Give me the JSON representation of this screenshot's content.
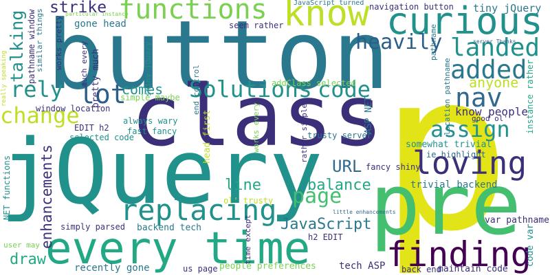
{
  "palette": {
    "dark_purple": "#440154",
    "indigo": "#3b2f7a",
    "blue": "#2c5e8a",
    "slate_blue": "#31688e",
    "teal_blue": "#2a788e",
    "teal": "#21918c",
    "sea_green": "#22a884",
    "green": "#44bf70",
    "light_green": "#7ad151",
    "yellow_green": "#bddf26",
    "yellow": "#e2e418"
  },
  "words": [
    {
      "text": "p",
      "color": "yellow"
    },
    {
      "text": "button",
      "color": "teal_blue"
    },
    {
      "text": "class",
      "color": "indigo"
    },
    {
      "text": "jQuery",
      "color": "teal"
    },
    {
      "text": "pre",
      "color": "green"
    },
    {
      "text": "every time",
      "color": "sea_green"
    },
    {
      "text": "know",
      "color": "yellow_green"
    },
    {
      "text": "curious",
      "color": "teal"
    },
    {
      "text": "loving",
      "color": "indigo"
    },
    {
      "text": "finding",
      "color": "dark_purple"
    },
    {
      "text": "functions",
      "color": "light_green"
    },
    {
      "text": "replacing",
      "color": "teal"
    },
    {
      "text": "Solutions",
      "color": "teal"
    },
    {
      "text": "added",
      "color": "teal_blue"
    },
    {
      "text": "landed",
      "color": "teal"
    },
    {
      "text": "heavily",
      "color": "blue"
    },
    {
      "text": "assign",
      "color": "teal"
    },
    {
      "text": "nav",
      "color": "slate_blue"
    },
    {
      "text": "code",
      "color": "teal"
    },
    {
      "text": "rely",
      "color": "teal"
    },
    {
      "text": "lot",
      "color": "blue"
    },
    {
      "text": "change",
      "color": "yellow_green"
    },
    {
      "text": "strike",
      "color": "indigo"
    },
    {
      "text": "URL",
      "color": "slate_blue"
    },
    {
      "text": "page",
      "color": "green"
    },
    {
      "text": "JavaScript",
      "color": "teal_blue"
    },
    {
      "text": "talking",
      "color": "teal"
    },
    {
      "text": "enhancements",
      "color": "indigo"
    },
    {
      "text": "line",
      "color": "sea_green"
    },
    {
      "text": "balance",
      "color": "sea_green"
    },
    {
      "text": "draw",
      "color": "sea_green"
    },
    {
      "text": "comes",
      "color": "teal"
    },
    {
      "text": "anyone",
      "color": "yellow_green"
    },
    {
      "text": "know people",
      "color": "indigo"
    },
    {
      "text": "gone head",
      "color": "teal_blue"
    },
    {
      "text": "tiny jQuery",
      "color": "teal_blue"
    },
    {
      "text": "navigation button",
      "color": "indigo"
    },
    {
      "text": "JavaScript turned",
      "color": "teal_blue"
    },
    {
      "text": "seem rather",
      "color": "indigo"
    },
    {
      "text": "addClass selected",
      "color": "light_green"
    },
    {
      "text": "window location",
      "color": "indigo"
    },
    {
      "text": "EDIT h2",
      "color": "indigo"
    },
    {
      "text": "selected code",
      "color": "teal"
    },
    {
      "text": "fast fancy",
      "color": "teal"
    },
    {
      "text": "simple maybe",
      "color": "light_green"
    },
    {
      "text": "always wary",
      "color": "teal"
    },
    {
      "text": "trusty server",
      "color": "teal_blue"
    },
    {
      "text": "somewhat trivial",
      "color": "teal"
    },
    {
      "text": "ie highlight",
      "color": "slate_blue"
    },
    {
      "text": "fancy shiny",
      "color": "indigo"
    },
    {
      "text": "trivial backend",
      "color": "teal_blue"
    },
    {
      "text": "backend tech",
      "color": "teal_blue"
    },
    {
      "text": "simply parsed",
      "color": "indigo"
    },
    {
      "text": "recently gone",
      "color": "teal_blue"
    },
    {
      "text": "us page",
      "color": "indigo"
    },
    {
      "text": "people preferences",
      "color": "light_green"
    },
    {
      "text": "tech ASP",
      "color": "indigo"
    },
    {
      "text": "back end",
      "color": "indigo"
    },
    {
      "text": "maintain code",
      "color": "indigo"
    },
    {
      "text": "var pathname",
      "color": "indigo"
    },
    {
      "text": "user may",
      "color": "light_green"
    },
    {
      "text": "h2 EDIT",
      "color": "indigo"
    },
    {
      "text": "ol' trusty",
      "color": "yellow_green"
    },
    {
      "text": "little enhancements",
      "color": "slate_blue"
    },
    {
      "text": "particular instance",
      "color": "light_green"
    },
    {
      "text": "server Thanks",
      "color": "blue"
    },
    {
      "text": "good ol'",
      "color": "indigo"
    },
    {
      "text": "pathname",
      "color": "teal_blue"
    },
    {
      "text": "location pathname",
      "color": "teal_blue"
    },
    {
      "text": "instance rather",
      "color": "sea_green"
    },
    {
      "text": "code var",
      "color": "teal"
    },
    {
      "text": "works every",
      "color": "light_green"
    },
    {
      "text": "ASP NET",
      "color": "teal_blue"
    },
    {
      "text": "rather simple",
      "color": "indigo"
    },
    {
      "text": "head first",
      "color": "yellow_green"
    },
    {
      "text": "time except",
      "color": "indigo"
    },
    {
      "text": "end control",
      "color": "teal_blue"
    },
    {
      "text": "shiny jQuery",
      "color": "teal"
    },
    {
      "text": "pretty much",
      "color": "indigo"
    },
    {
      "text": "much every",
      "color": "indigo"
    },
    {
      "text": "works pretty",
      "color": "indigo"
    },
    {
      "text": "similar things",
      "color": "teal_blue"
    },
    {
      "text": "pathname window",
      "color": "indigo"
    },
    {
      "text": "really speaking",
      "color": "yellow_green"
    },
    {
      "text": "NET functions",
      "color": "teal"
    }
  ]
}
